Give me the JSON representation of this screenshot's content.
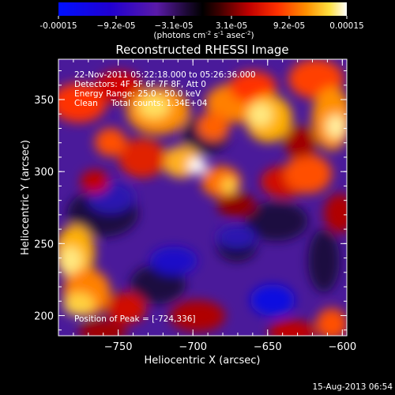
{
  "colorbar": {
    "ticks": [
      "-0.00015",
      "−9.2e-05",
      "−3.1e-05",
      "3.1e-05",
      "9.2e-05",
      "0.00015"
    ],
    "tick_values": [
      -0.00015,
      -9.2e-05,
      -3.1e-05,
      3.1e-05,
      9.2e-05,
      0.00015
    ],
    "units_main": "(photons cm",
    "units_exp1": "-2",
    "units_mid": " s",
    "units_exp2": "-1",
    "units_end": " asec",
    "units_exp3": "-2",
    "units_close": ")",
    "range": [
      -0.00015,
      0.00015
    ]
  },
  "chart_data": {
    "type": "heatmap",
    "title": "Reconstructed RHESSI Image",
    "xlabel": "Heliocentric X (arcsec)",
    "ylabel": "Heliocentric Y (arcsec)",
    "xlim": [
      -790,
      -597
    ],
    "ylim": [
      186,
      378
    ],
    "xticks": [
      -750,
      -700,
      -650,
      -600
    ],
    "yticks": [
      200,
      250,
      300,
      350
    ],
    "xtick_labels": [
      "−750",
      "−700",
      "−650",
      "−600"
    ],
    "ytick_labels": [
      "200",
      "250",
      "300",
      "350"
    ],
    "info_lines": [
      "22-Nov-2011 05:22:18.000 to 05:26:36.000",
      "Detectors: 4F 5F 6F 7F 8F, Att 0",
      "Energy Range: 25.0 - 50.0 keV",
      "Clean     Total counts: 1.34E+04"
    ],
    "peak_label": "Position of Peak = [-724,336]",
    "peak_position": [
      -724,
      336
    ]
  },
  "footer": {
    "timestamp": "15-Aug-2013 06:54"
  },
  "colors": {
    "background": "#000000",
    "colormap": [
      "#0000ff",
      "#1a00c8",
      "#5020a0",
      "#000000",
      "#a00000",
      "#ff2000",
      "#ff8000",
      "#ffd000",
      "#ffffff"
    ]
  }
}
